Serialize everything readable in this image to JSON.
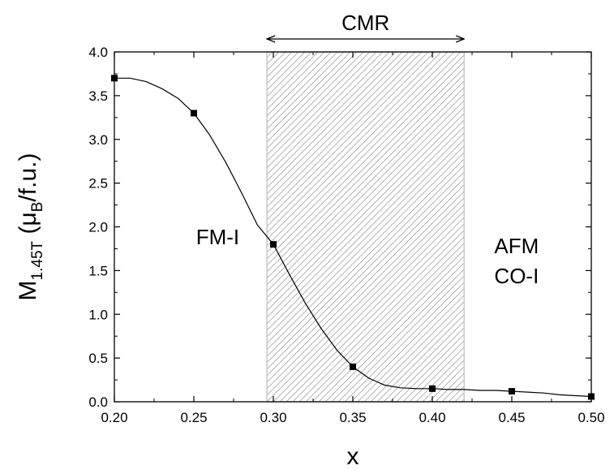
{
  "chart_data": {
    "type": "scatter",
    "xlabel": "x",
    "ylabel": {
      "base": "M",
      "sub": "1.45T",
      "open": " (μ",
      "unit_sub": "B",
      "close": "/f.u.)"
    },
    "xlim": [
      0.2,
      0.5
    ],
    "ylim": [
      0.0,
      4.0
    ],
    "x_ticks": [
      "0.20",
      "0.25",
      "0.30",
      "0.35",
      "0.40",
      "0.45",
      "0.50"
    ],
    "y_ticks": [
      "0.0",
      "0.5",
      "1.0",
      "1.5",
      "2.0",
      "2.5",
      "3.0",
      "3.5",
      "4.0"
    ],
    "grid": false,
    "series": [
      {
        "points": [
          {
            "x": 0.2,
            "y": 3.7
          },
          {
            "x": 0.25,
            "y": 3.3
          },
          {
            "x": 0.3,
            "y": 1.8
          },
          {
            "x": 0.35,
            "y": 0.4
          },
          {
            "x": 0.4,
            "y": 0.15
          },
          {
            "x": 0.45,
            "y": 0.12
          },
          {
            "x": 0.5,
            "y": 0.06
          }
        ]
      }
    ],
    "fit_curve": [
      [
        0.2,
        3.7
      ],
      [
        0.21,
        3.7
      ],
      [
        0.22,
        3.66
      ],
      [
        0.23,
        3.58
      ],
      [
        0.24,
        3.47
      ],
      [
        0.25,
        3.3
      ],
      [
        0.26,
        3.05
      ],
      [
        0.27,
        2.74
      ],
      [
        0.28,
        2.39
      ],
      [
        0.29,
        2.02
      ],
      [
        0.3,
        1.8
      ],
      [
        0.31,
        1.46
      ],
      [
        0.32,
        1.13
      ],
      [
        0.33,
        0.84
      ],
      [
        0.34,
        0.59
      ],
      [
        0.35,
        0.4
      ],
      [
        0.36,
        0.27
      ],
      [
        0.37,
        0.19
      ],
      [
        0.38,
        0.16
      ],
      [
        0.39,
        0.15
      ],
      [
        0.4,
        0.15
      ],
      [
        0.41,
        0.14
      ],
      [
        0.42,
        0.14
      ],
      [
        0.43,
        0.13
      ],
      [
        0.44,
        0.13
      ],
      [
        0.45,
        0.12
      ],
      [
        0.46,
        0.11
      ],
      [
        0.47,
        0.1
      ],
      [
        0.48,
        0.08
      ],
      [
        0.49,
        0.07
      ],
      [
        0.5,
        0.06
      ]
    ],
    "cmr_region": {
      "x_start": 0.296,
      "x_end": 0.42,
      "label": "CMR"
    },
    "annotations": [
      {
        "id": "fm",
        "lines": [
          "FM-I"
        ],
        "x": 0.265,
        "y": 1.8
      },
      {
        "id": "afm",
        "lines": [
          "AFM",
          "CO-I"
        ],
        "x": 0.453,
        "y": 1.7
      }
    ]
  }
}
